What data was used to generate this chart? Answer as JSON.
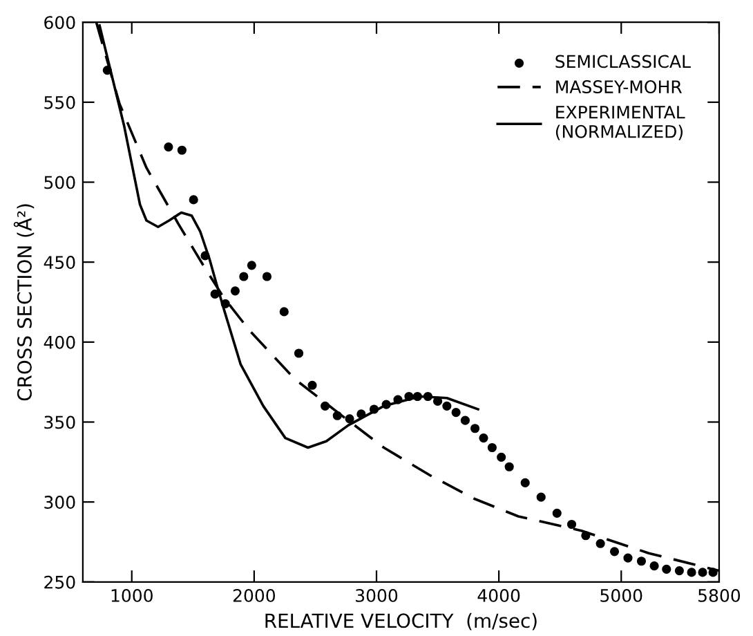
{
  "chart_data": {
    "type": "line",
    "xlabel": "RELATIVE VELOCITY  (m/sec)",
    "ylabel": "CROSS SECTION (Å²)",
    "xlim": [
      600,
      5800
    ],
    "xticks": [
      1000,
      2000,
      3000,
      4000,
      5000,
      5800
    ],
    "ylim": [
      250,
      600
    ],
    "yticks": [
      250,
      300,
      350,
      400,
      450,
      500,
      550,
      600
    ],
    "grid": false,
    "legend": "top right",
    "series": [
      {
        "name": "SEMICLASSICAL",
        "type": "scatter",
        "marker": "circle",
        "color": "#000000",
        "x": [
          800,
          1300,
          1410,
          1505,
          1600,
          1680,
          1765,
          1845,
          1915,
          1980,
          2105,
          2245,
          2365,
          2475,
          2580,
          2680,
          2780,
          2875,
          2980,
          3080,
          3175,
          3265,
          3335,
          3420,
          3500,
          3575,
          3650,
          3725,
          3805,
          3875,
          3945,
          4020,
          4085,
          4215,
          4345,
          4475,
          4595,
          4710,
          4830,
          4945,
          5055,
          5165,
          5270,
          5370,
          5475,
          5575,
          5665,
          5750
        ],
        "values": [
          570,
          522,
          520,
          489,
          454,
          430,
          424,
          432,
          441,
          448,
          441,
          419,
          393,
          373,
          360,
          354,
          352,
          355,
          358,
          361,
          364,
          366,
          366,
          366,
          363,
          360,
          356,
          351,
          346,
          340,
          334,
          328,
          322,
          312,
          303,
          293,
          286,
          279,
          274,
          269,
          265,
          263,
          260,
          258,
          257,
          256,
          256,
          256
        ]
      },
      {
        "name": "MASSEY-MOHR",
        "line_style": "dashed",
        "color": "#000000",
        "x": [
          710,
          900,
          1120,
          1380,
          1600,
          1750,
          1965,
          2330,
          2700,
          3060,
          3430,
          3800,
          4160,
          4675,
          5225,
          5800
        ],
        "values": [
          600,
          549,
          509,
          474,
          446,
          428,
          407,
          377,
          355,
          334,
          317,
          302,
          291,
          282,
          268,
          257
        ]
      },
      {
        "name": "EXPERIMENTAL\n(NORMALIZED)",
        "line_style": "solid",
        "color": "#000000",
        "x": [
          737,
          810,
          938,
          1067,
          1120,
          1215,
          1305,
          1405,
          1490,
          1560,
          1635,
          1690,
          1755,
          1890,
          2075,
          2255,
          2440,
          2590,
          2770,
          3060,
          3355,
          3575,
          3830
        ],
        "values": [
          598,
          575,
          535,
          486,
          476,
          472,
          476,
          481,
          479,
          469,
          452,
          437,
          420,
          386,
          360,
          340,
          334,
          338,
          348,
          360,
          366,
          365,
          358
        ]
      }
    ]
  }
}
